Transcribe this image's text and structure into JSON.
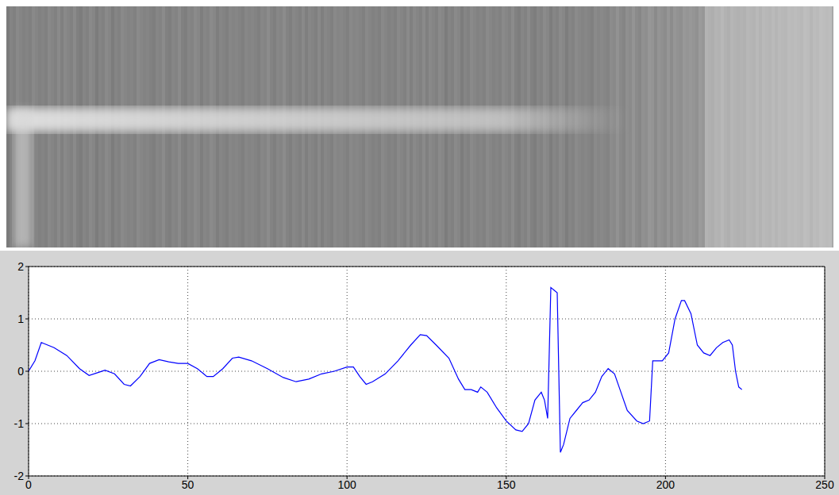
{
  "chart_data": {
    "type": "line",
    "color": "#0000ff",
    "grid": true,
    "xlim": [
      0,
      250
    ],
    "ylim": [
      -2,
      2
    ],
    "xticks": [
      0,
      50,
      100,
      150,
      200,
      250
    ],
    "yticks": [
      -2,
      -1,
      0,
      1,
      2
    ],
    "x": [
      0,
      2,
      4,
      8,
      12,
      16,
      19,
      22,
      24,
      27,
      30,
      32,
      35,
      38,
      41,
      44,
      47,
      50,
      53,
      56,
      58,
      61,
      64,
      66,
      70,
      75,
      80,
      84,
      88,
      92,
      96,
      100,
      102,
      104,
      106,
      108,
      112,
      116,
      120,
      123,
      125,
      128,
      132,
      135,
      137,
      139,
      141,
      142,
      144,
      147,
      150,
      153,
      155,
      157,
      159,
      161,
      162,
      163,
      164,
      165,
      166,
      167,
      168,
      170,
      172,
      174,
      176,
      178,
      180,
      182,
      184,
      186,
      188,
      191,
      193,
      195,
      196,
      197,
      199,
      201,
      203,
      205,
      206,
      208,
      210,
      212,
      214,
      216,
      218,
      220,
      221,
      222,
      223,
      224
    ],
    "values": [
      0,
      0.2,
      0.55,
      0.45,
      0.3,
      0.05,
      -0.08,
      -0.02,
      0.02,
      -0.05,
      -0.25,
      -0.28,
      -0.1,
      0.15,
      0.22,
      0.18,
      0.15,
      0.15,
      0.05,
      -0.1,
      -0.1,
      0.05,
      0.25,
      0.27,
      0.2,
      0.05,
      -0.12,
      -0.2,
      -0.15,
      -0.05,
      0,
      0.08,
      0.08,
      -0.1,
      -0.25,
      -0.2,
      -0.05,
      0.2,
      0.5,
      0.7,
      0.68,
      0.5,
      0.25,
      -0.15,
      -0.35,
      -0.35,
      -0.4,
      -0.3,
      -0.4,
      -0.7,
      -0.95,
      -1.12,
      -1.15,
      -1.0,
      -0.55,
      -0.4,
      -0.55,
      -0.9,
      1.6,
      1.55,
      1.5,
      -1.55,
      -1.4,
      -0.9,
      -0.75,
      -0.6,
      -0.55,
      -0.4,
      -0.1,
      0.05,
      -0.05,
      -0.4,
      -0.75,
      -0.95,
      -1.0,
      -0.95,
      0.2,
      0.2,
      0.2,
      0.35,
      1.0,
      1.35,
      1.35,
      1.1,
      0.5,
      0.35,
      0.3,
      0.45,
      0.55,
      0.6,
      0.5,
      0.0,
      -0.3,
      -0.35
    ]
  }
}
